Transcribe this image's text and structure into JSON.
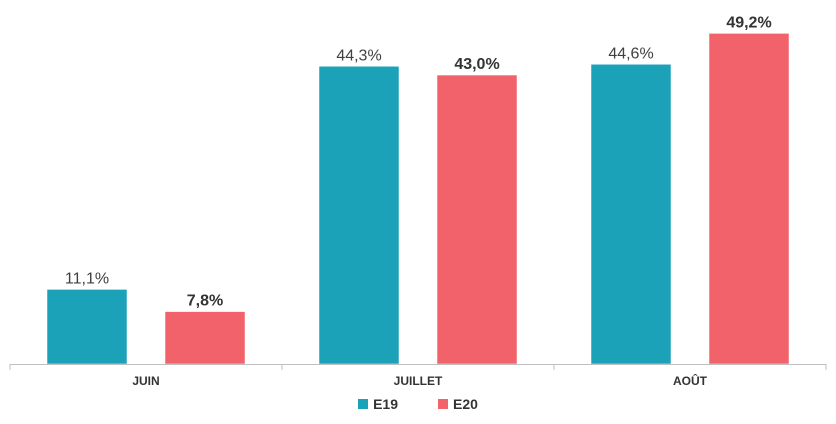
{
  "chart_data": {
    "type": "bar",
    "categories": [
      "JUIN",
      "JUILLET",
      "AOÛT"
    ],
    "series": [
      {
        "name": "E19",
        "values": [
          11.1,
          44.3,
          44.6
        ],
        "labels": [
          "11,1%",
          "44,3%",
          "44,6%"
        ],
        "color": "#1ba2b9",
        "label_bold": false
      },
      {
        "name": "E20",
        "values": [
          7.8,
          43.0,
          49.2
        ],
        "labels": [
          "7,8%",
          "43,0%",
          "49,2%"
        ],
        "color": "#f2626a",
        "label_bold": true
      }
    ],
    "ylim": [
      0,
      50
    ],
    "grid": false,
    "legend_position": "bottom",
    "title": "",
    "xlabel": "",
    "ylabel": ""
  }
}
